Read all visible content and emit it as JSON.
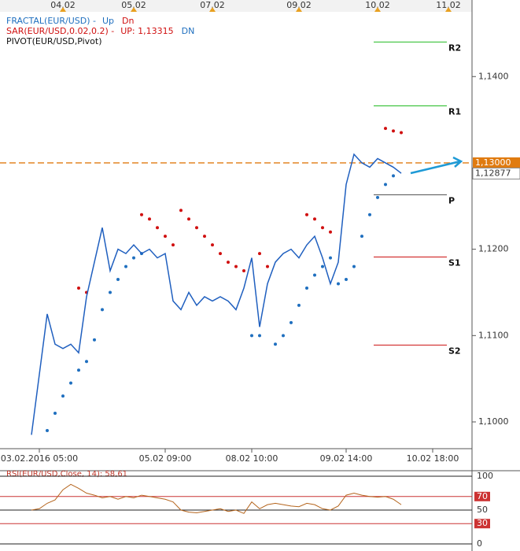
{
  "chart_data": {
    "type": "line",
    "legend": [
      {
        "name": "FRACTAL(EUR/USD)  -",
        "color": "#1f6fbf",
        "parts": [
          {
            "text": "Up",
            "color": "#1f6fbf"
          },
          {
            "text": "Dn",
            "color": "#d01010"
          }
        ]
      },
      {
        "name": "SAR(EUR/USD,0.02,0.2)  -",
        "color": "#d01010",
        "parts": [
          {
            "text": "UP: 1,13315",
            "color": "#d01010"
          },
          {
            "text": "DN",
            "color": "#1f6fbf"
          }
        ]
      },
      {
        "name": "PIVOT(EUR/USD,Pivot)",
        "color": "#111111",
        "parts": []
      }
    ],
    "xlim": [
      -4,
      56
    ],
    "xticks": [
      {
        "value": 1,
        "label": "03.02.2016 05:00"
      },
      {
        "value": 17,
        "label": "05.02 09:00"
      },
      {
        "value": 28,
        "label": "08.02 10:00"
      },
      {
        "value": 40,
        "label": "09.02 14:00"
      },
      {
        "value": 51,
        "label": "10.02 18:00"
      }
    ],
    "date_ticks": [
      {
        "value": 4,
        "label": "04.02"
      },
      {
        "value": 13,
        "label": "05.02"
      },
      {
        "value": 23,
        "label": "07.02"
      },
      {
        "value": 34,
        "label": "09.02"
      },
      {
        "value": 44,
        "label": "10.02"
      },
      {
        "value": 53,
        "label": "11.02"
      }
    ],
    "ylim": [
      1.0969,
      1.1475
    ],
    "yticks": [
      {
        "value": 1.1,
        "label": "1,1000"
      },
      {
        "value": 1.11,
        "label": "1,1100"
      },
      {
        "value": 1.12,
        "label": "1,1200"
      },
      {
        "value": 1.14,
        "label": "1,1400"
      }
    ],
    "color": "#1f5fbf",
    "values": [
      1.0985,
      1.1055,
      1.1125,
      1.109,
      1.1085,
      1.109,
      1.108,
      1.1145,
      1.1185,
      1.1225,
      1.1175,
      1.12,
      1.1195,
      1.1205,
      1.1195,
      1.12,
      1.119,
      1.1195,
      1.114,
      1.113,
      1.115,
      1.1135,
      1.1145,
      1.114,
      1.1145,
      1.114,
      1.113,
      1.1155,
      1.119,
      1.111,
      1.116,
      1.1185,
      1.1195,
      1.12,
      1.119,
      1.1205,
      1.1215,
      1.119,
      1.116,
      1.1185,
      1.1275,
      1.131,
      1.13,
      1.1295,
      1.1305,
      1.13,
      1.1295,
      1.1288
    ],
    "sar_up": {
      "color": "#1f6fbf",
      "values": [
        null,
        null,
        1.099,
        1.101,
        1.103,
        1.1045,
        1.106,
        1.107,
        1.1095,
        1.113,
        1.115,
        1.1165,
        1.118,
        1.119,
        1.1195,
        null,
        null,
        null,
        null,
        null,
        null,
        null,
        null,
        null,
        null,
        null,
        null,
        null,
        1.11,
        1.11,
        null,
        1.109,
        1.11,
        1.1115,
        1.1135,
        1.1155,
        1.117,
        1.118,
        1.119,
        1.116,
        1.1165,
        1.118,
        1.1215,
        1.124,
        1.126,
        1.1275,
        1.1285,
        null
      ]
    },
    "sar_dn": {
      "color": "#d01010",
      "values": [
        null,
        null,
        null,
        null,
        null,
        null,
        1.1155,
        1.115,
        null,
        null,
        null,
        null,
        null,
        null,
        1.124,
        1.1235,
        1.1225,
        1.1215,
        1.1205,
        1.1245,
        1.1235,
        1.1225,
        1.1215,
        1.1205,
        1.1195,
        1.1185,
        1.118,
        1.1175,
        null,
        1.1195,
        1.118,
        null,
        null,
        null,
        null,
        1.124,
        1.1235,
        1.1225,
        1.122,
        null,
        null,
        null,
        null,
        null,
        null,
        1.134,
        1.1337,
        1.1335
      ]
    },
    "pivots": [
      {
        "label": "R2",
        "value": 1.144,
        "color": "#22bb22"
      },
      {
        "label": "R1",
        "value": 1.1366,
        "color": "#22bb22"
      },
      {
        "label": "P",
        "value": 1.1263,
        "color": "#555555"
      },
      {
        "label": "S1",
        "value": 1.1191,
        "color": "#cc1111"
      },
      {
        "label": "S2",
        "value": 1.1089,
        "color": "#cc1111"
      }
    ],
    "level": {
      "value": 1.13,
      "label": "1,13000",
      "color": "#e07b10"
    },
    "last": {
      "value": 1.12877,
      "label": "1,12877"
    },
    "rsi": {
      "title": "RSI(EUR/USD,Close, 14): 58,61",
      "color": "#b5651d",
      "ylim": [
        0,
        100
      ],
      "yticks": [
        100,
        70,
        50,
        30,
        0
      ],
      "values": [
        50,
        52,
        60,
        65,
        80,
        88,
        82,
        75,
        72,
        68,
        70,
        66,
        70,
        68,
        72,
        70,
        68,
        66,
        62,
        50,
        47,
        46,
        48,
        50,
        52,
        48,
        50,
        45,
        62,
        52,
        58,
        60,
        58,
        56,
        55,
        60,
        58,
        52,
        50,
        56,
        72,
        75,
        72,
        70,
        69,
        70,
        66,
        58
      ]
    }
  }
}
